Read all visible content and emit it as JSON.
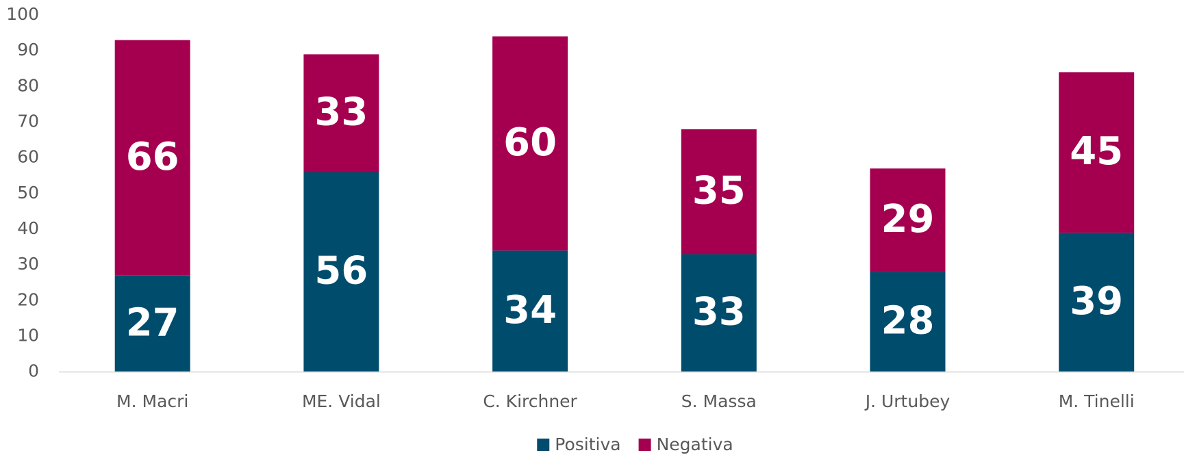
{
  "chart_data": {
    "type": "stacked_bar",
    "categories": [
      "M. Macri",
      "ME. Vidal",
      "C. Kirchner",
      "S. Massa",
      "J. Urtubey",
      "M. Tinelli"
    ],
    "series": [
      {
        "name": "Positiva",
        "color": "#004c6d",
        "values": [
          27,
          56,
          34,
          33,
          28,
          39
        ]
      },
      {
        "name": "Negativa",
        "color": "#a50050",
        "values": [
          66,
          33,
          60,
          35,
          29,
          45
        ]
      }
    ],
    "ylim": [
      0,
      100
    ],
    "yticks": [
      0,
      10,
      20,
      30,
      40,
      50,
      60,
      70,
      80,
      90,
      100
    ],
    "grid": false,
    "legend": "bottom"
  }
}
